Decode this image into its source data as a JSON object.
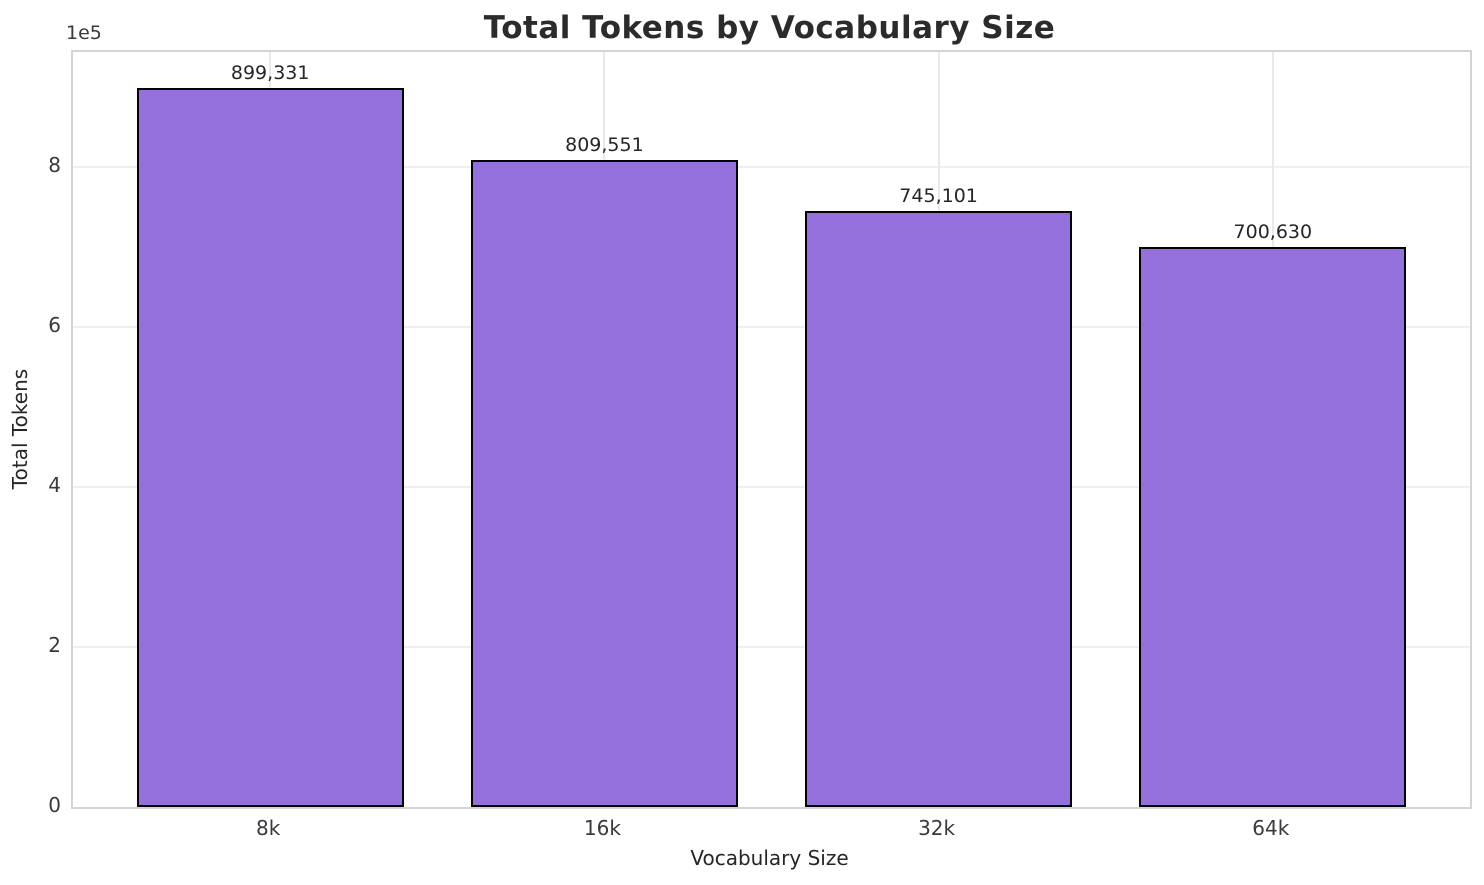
{
  "chart_data": {
    "type": "bar",
    "title": "Total Tokens by Vocabulary Size",
    "xlabel": "Vocabulary Size",
    "ylabel": "Total Tokens",
    "offset_text": "1e5",
    "categories": [
      "8k",
      "16k",
      "32k",
      "64k"
    ],
    "values": [
      899331,
      809551,
      745101,
      700630
    ],
    "value_labels": [
      "899,331",
      "809,551",
      "745,101",
      "700,630"
    ],
    "ylim": [
      0,
      944298
    ],
    "yticks": [
      0,
      200000,
      400000,
      600000,
      800000
    ],
    "ytick_labels": [
      "0",
      "2",
      "4",
      "6",
      "8"
    ],
    "grid": true,
    "legend": null,
    "bar_color": "#9370DB",
    "bar_edge_color": "#000000",
    "bar_width_fraction": 0.8
  }
}
